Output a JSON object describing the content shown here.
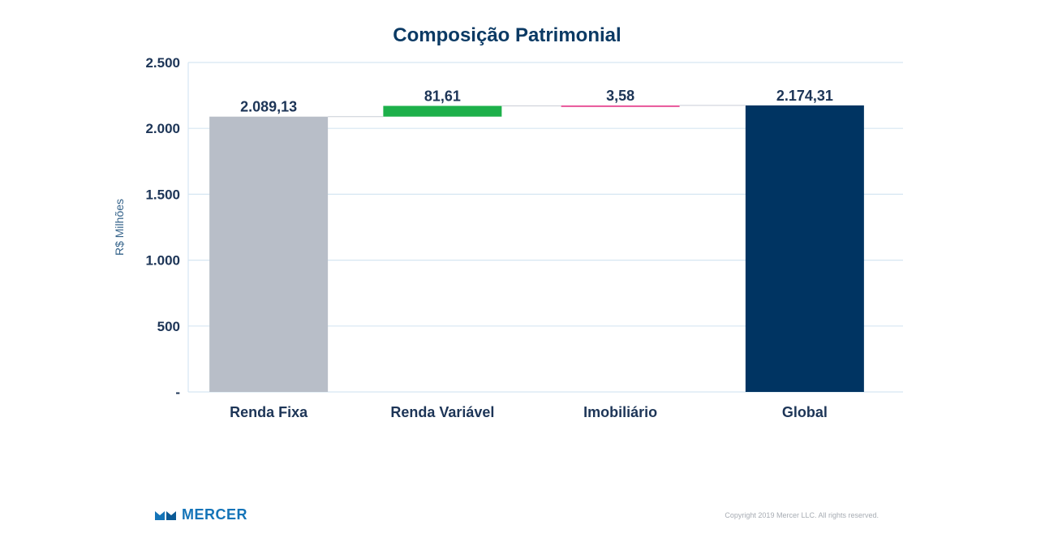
{
  "chart_data": {
    "type": "waterfall",
    "title": "Composição Patrimonial",
    "ylabel": "R$ Milhões",
    "xlabel": "",
    "ylim": [
      0,
      2500
    ],
    "y_ticks": [
      {
        "value": 0,
        "label": "-"
      },
      {
        "value": 500,
        "label": "500"
      },
      {
        "value": 1000,
        "label": "1.000"
      },
      {
        "value": 1500,
        "label": "1.500"
      },
      {
        "value": 2000,
        "label": "2.000"
      },
      {
        "value": 2500,
        "label": "2.500"
      }
    ],
    "grid": true,
    "categories": [
      "Renda Fixa",
      "Renda Variável",
      "Imobiliário",
      "Global"
    ],
    "bars": [
      {
        "category": "Renda Fixa",
        "base": 0,
        "value": 2089.13,
        "label": "2.089,13",
        "color": "#b8bec8"
      },
      {
        "category": "Renda Variável",
        "base": 2089.13,
        "value": 81.61,
        "label": "81,61",
        "color": "#1db04a"
      },
      {
        "category": "Imobiliário",
        "base": 2170.74,
        "value": 3.58,
        "label": "3,58",
        "color": "#e8559a"
      },
      {
        "category": "Global",
        "base": 0,
        "value": 2174.31,
        "label": "2.174,31",
        "color": "#003462"
      }
    ]
  },
  "footer": {
    "logo_text": "MERCER",
    "copyright": "Copyright 2019 Mercer LLC. All rights reserved."
  },
  "colors": {
    "logo": "#1474b8"
  }
}
